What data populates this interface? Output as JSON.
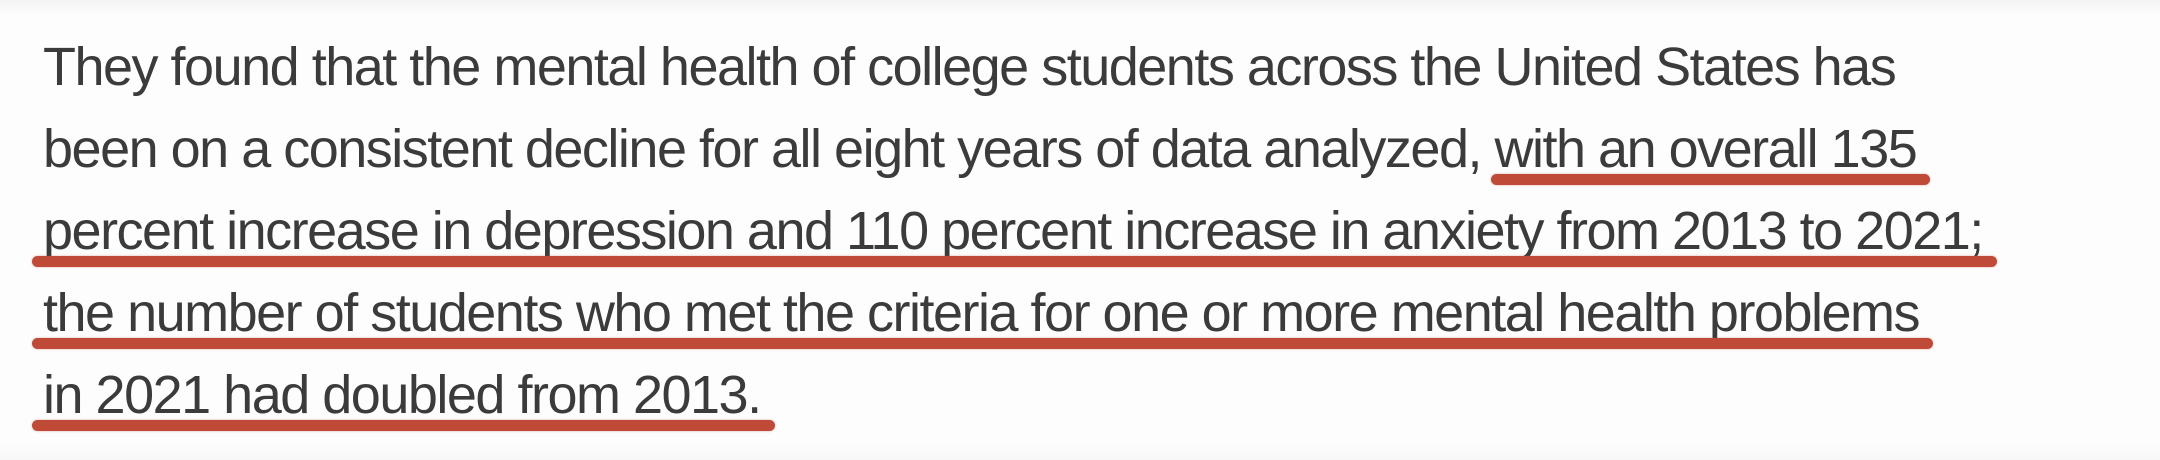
{
  "theme": {
    "text_color": "#3b3b3b",
    "underline_color": "#bf4a38",
    "background_color": "#fdfdfd"
  },
  "document": {
    "kind": "article-text-excerpt-with-red-underline-annotation",
    "lines": [
      {
        "pre": "They found that the mental health of college students across the United States has",
        "marked": ""
      },
      {
        "pre": "been on a consistent decline for all eight years of data analyzed, ",
        "marked": "with an overall 135"
      },
      {
        "pre": "",
        "marked": "percent increase in depression and 110 percent increase in anxiety from 2013 to 2021;"
      },
      {
        "pre": "",
        "marked": "the number of students who met the criteria for one or more mental health problems"
      },
      {
        "pre": "",
        "marked": "in 2021 had doubled from 2013."
      }
    ]
  }
}
